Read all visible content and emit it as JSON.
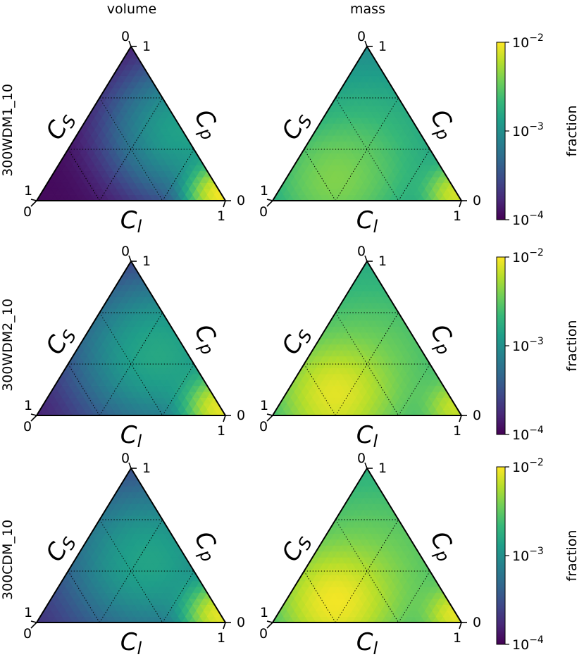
{
  "figure": {
    "column_titles": [
      "volume",
      "mass"
    ],
    "row_labels": [
      "300WDM1_10",
      "300WDM2_10",
      "300CDM_10"
    ]
  },
  "axes": {
    "cs": "C",
    "cs_sub": "S",
    "cp": "C",
    "cp_sub": "p",
    "cl": "C",
    "cl_sub": "l",
    "tick_zero": "0",
    "tick_one": "1"
  },
  "colorbar": {
    "label": "fraction",
    "tick_base": "10",
    "exp_top": "−2",
    "exp_mid": "−3",
    "exp_bottom": "−4",
    "colormap": "viridis",
    "scale": "log",
    "range": [
      0.0001,
      0.01
    ]
  },
  "colors": {
    "viridis": [
      "#440154",
      "#482878",
      "#3e4989",
      "#31688e",
      "#26828e",
      "#1f9e89",
      "#35b779",
      "#6ece58",
      "#b5de2b",
      "#fde725"
    ]
  },
  "chart_data": [
    {
      "type": "heatmap",
      "subtype": "ternary",
      "row": "300WDM1_10",
      "column": "volume",
      "colorbar_label": "fraction",
      "scale": "log",
      "range": [
        0.0001,
        0.01
      ],
      "hotspots": [
        {
          "cs": 0.0,
          "cp": 0.04,
          "cl": 0.96,
          "log10_fraction": -2.05,
          "spread": 0.13
        },
        {
          "cs": 0.0,
          "cp": 0.45,
          "cl": 0.55,
          "log10_fraction": -2.9,
          "spread": 0.3
        }
      ],
      "floor_log10": -3.95
    },
    {
      "type": "heatmap",
      "subtype": "ternary",
      "row": "300WDM1_10",
      "column": "mass",
      "colorbar_label": "fraction",
      "scale": "log",
      "range": [
        0.0001,
        0.01
      ],
      "hotspots": [
        {
          "cs": 0.0,
          "cp": 0.04,
          "cl": 0.96,
          "log10_fraction": -2.2,
          "spread": 0.13
        },
        {
          "cs": 0.65,
          "cp": 0.1,
          "cl": 0.25,
          "log10_fraction": -2.6,
          "spread": 0.3
        },
        {
          "cs": 0.3,
          "cp": 0.35,
          "cl": 0.35,
          "log10_fraction": -2.85,
          "spread": 0.45
        }
      ],
      "floor_log10": -3.2
    },
    {
      "type": "heatmap",
      "subtype": "ternary",
      "row": "300WDM2_10",
      "column": "volume",
      "colorbar_label": "fraction",
      "scale": "log",
      "range": [
        0.0001,
        0.01
      ],
      "hotspots": [
        {
          "cs": 0.0,
          "cp": 0.05,
          "cl": 0.95,
          "log10_fraction": -2.1,
          "spread": 0.14
        },
        {
          "cs": 0.15,
          "cp": 0.4,
          "cl": 0.45,
          "log10_fraction": -2.85,
          "spread": 0.35
        }
      ],
      "floor_log10": -3.85
    },
    {
      "type": "heatmap",
      "subtype": "ternary",
      "row": "300WDM2_10",
      "column": "mass",
      "colorbar_label": "fraction",
      "scale": "log",
      "range": [
        0.0001,
        0.01
      ],
      "hotspots": [
        {
          "cs": 0.0,
          "cp": 0.05,
          "cl": 0.95,
          "log10_fraction": -2.3,
          "spread": 0.13
        },
        {
          "cs": 0.62,
          "cp": 0.12,
          "cl": 0.26,
          "log10_fraction": -2.25,
          "spread": 0.25
        },
        {
          "cs": 0.3,
          "cp": 0.35,
          "cl": 0.35,
          "log10_fraction": -2.65,
          "spread": 0.5
        }
      ],
      "floor_log10": -3.0
    },
    {
      "type": "heatmap",
      "subtype": "ternary",
      "row": "300CDM_10",
      "column": "volume",
      "colorbar_label": "fraction",
      "scale": "log",
      "range": [
        0.0001,
        0.01
      ],
      "hotspots": [
        {
          "cs": 0.0,
          "cp": 0.05,
          "cl": 0.95,
          "log10_fraction": -2.1,
          "spread": 0.14
        },
        {
          "cs": 0.2,
          "cp": 0.4,
          "cl": 0.4,
          "log10_fraction": -2.9,
          "spread": 0.35
        }
      ],
      "floor_log10": -3.75
    },
    {
      "type": "heatmap",
      "subtype": "ternary",
      "row": "300CDM_10",
      "column": "mass",
      "colorbar_label": "fraction",
      "scale": "log",
      "range": [
        0.0001,
        0.01
      ],
      "hotspots": [
        {
          "cs": 0.0,
          "cp": 0.05,
          "cl": 0.95,
          "log10_fraction": -2.2,
          "spread": 0.13
        },
        {
          "cs": 0.62,
          "cp": 0.12,
          "cl": 0.26,
          "log10_fraction": -2.2,
          "spread": 0.25
        },
        {
          "cs": 0.3,
          "cp": 0.35,
          "cl": 0.35,
          "log10_fraction": -2.6,
          "spread": 0.5
        }
      ],
      "floor_log10": -2.95
    }
  ]
}
